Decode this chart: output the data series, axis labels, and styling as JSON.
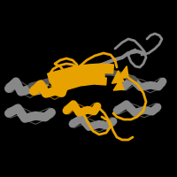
{
  "background_color": "#000000",
  "orange": "#E8A200",
  "gray": "#888888",
  "dark_gray": "#555555",
  "figsize": [
    2.0,
    2.0
  ],
  "dpi": 100
}
